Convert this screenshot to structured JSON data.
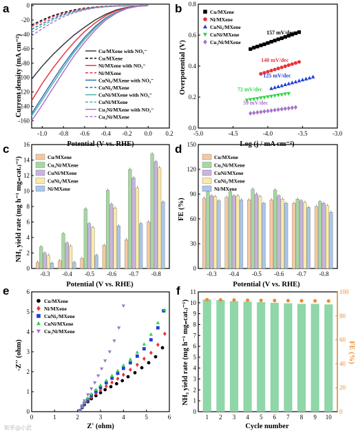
{
  "watermark": "知乎@小武",
  "chart_data": [
    {
      "id": "a",
      "panel_label": "a",
      "type": "line",
      "xlabel": "Potential (V vs. RHE)",
      "ylabel": "Current density (mA cm⁻²)",
      "xlim": [
        -1.1,
        0.2
      ],
      "ylim": [
        -170,
        2
      ],
      "xticks": [
        "-1.0",
        "-0.8",
        "-0.6",
        "-0.4",
        "-0.2",
        "0.0",
        "0.2"
      ],
      "yticks": [
        "-160",
        "-140",
        "-120",
        "-100",
        "-80",
        "-60",
        "-40",
        "-20",
        "0"
      ],
      "legend_position": "bottom-right",
      "series": [
        {
          "name": "Cu/MXene with NO₃⁻",
          "color": "#3a3a3a",
          "dash": false,
          "x": [
            -1.1,
            -1.0,
            -0.9,
            -0.8,
            -0.7,
            -0.6,
            -0.5,
            -0.4,
            -0.3,
            -0.2,
            -0.1,
            0.0
          ],
          "y": [
            -102,
            -84,
            -68,
            -54,
            -41,
            -30,
            -20,
            -12,
            -6,
            -2.5,
            -0.8,
            0
          ]
        },
        {
          "name": "Cu/MXene",
          "color": "#000000",
          "dash": true,
          "x": [
            -1.1,
            -1.0,
            -0.9,
            -0.8,
            -0.7,
            -0.6,
            -0.5,
            -0.4,
            -0.3,
            -0.2,
            -0.1,
            0.0
          ],
          "y": [
            -27,
            -20,
            -14,
            -9.5,
            -6,
            -3.5,
            -2,
            -1,
            -0.5,
            -0.2,
            -0.1,
            0
          ]
        },
        {
          "name": "Ni/MXene with NO₃⁻",
          "color": "#e8333b",
          "dash": false,
          "x": [
            -1.1,
            -1.0,
            -0.9,
            -0.8,
            -0.7,
            -0.6,
            -0.5,
            -0.4,
            -0.3,
            -0.2,
            -0.1,
            0.0
          ],
          "y": [
            -132,
            -108,
            -87,
            -68,
            -51,
            -36,
            -24,
            -14,
            -7,
            -3,
            -1,
            0
          ]
        },
        {
          "name": "Ni/MXene",
          "color": "#e8333b",
          "dash": true,
          "x": [
            -1.1,
            -1.0,
            -0.9,
            -0.8,
            -0.7,
            -0.6,
            -0.5,
            -0.4,
            -0.3,
            -0.2,
            -0.1,
            0.0
          ],
          "y": [
            -29,
            -22,
            -15.5,
            -10.5,
            -7,
            -4,
            -2.2,
            -1.1,
            -0.5,
            -0.2,
            -0.1,
            0
          ]
        },
        {
          "name": "CuNi₃/MXene with NO₃⁻",
          "color": "#2f6db5",
          "dash": false,
          "x": [
            -1.1,
            -1.0,
            -0.9,
            -0.8,
            -0.7,
            -0.6,
            -0.5,
            -0.4,
            -0.3,
            -0.2,
            -0.1,
            0.0
          ],
          "y": [
            -150,
            -127,
            -104,
            -82,
            -62,
            -44,
            -29,
            -17,
            -9,
            -3.5,
            -1,
            0
          ]
        },
        {
          "name": "CuNi₃/MXene",
          "color": "#2f6db5",
          "dash": true,
          "x": [
            -1.1,
            -1.0,
            -0.9,
            -0.8,
            -0.7,
            -0.6,
            -0.5,
            -0.4,
            -0.3,
            -0.2,
            -0.1,
            0.0
          ],
          "y": [
            -33,
            -25,
            -18,
            -12,
            -8,
            -4.8,
            -2.6,
            -1.3,
            -0.6,
            -0.2,
            -0.1,
            0
          ]
        },
        {
          "name": "CuNi/MXene with NO₃⁻",
          "color": "#4bb3a6",
          "dash": false,
          "x": [
            -1.1,
            -1.0,
            -0.9,
            -0.8,
            -0.7,
            -0.6,
            -0.5,
            -0.4,
            -0.3,
            -0.2,
            -0.1,
            0.0
          ],
          "y": [
            -153,
            -131,
            -108,
            -86,
            -65,
            -47,
            -31,
            -18,
            -9.5,
            -3.8,
            -1,
            0
          ]
        },
        {
          "name": "CuNi/MXene",
          "color": "#4bb3a6",
          "dash": true,
          "x": [
            -1.1,
            -1.0,
            -0.9,
            -0.8,
            -0.7,
            -0.6,
            -0.5,
            -0.4,
            -0.3,
            -0.2,
            -0.1,
            0.0
          ],
          "y": [
            -37,
            -28,
            -20,
            -13.5,
            -9,
            -5.5,
            -3,
            -1.5,
            -0.7,
            -0.3,
            -0.1,
            0
          ]
        },
        {
          "name": "Cu₃Ni/MXene with NO₃⁻",
          "color": "#b070cc",
          "dash": false,
          "x": [
            -1.1,
            -1.0,
            -0.9,
            -0.8,
            -0.7,
            -0.6,
            -0.5,
            -0.4,
            -0.3,
            -0.2,
            -0.1,
            0.0
          ],
          "y": [
            -160,
            -138,
            -115,
            -92,
            -70,
            -51,
            -34,
            -20,
            -10.5,
            -4,
            -1.2,
            0
          ]
        },
        {
          "name": "Cu₃Ni/MXene",
          "color": "#b070cc",
          "dash": true,
          "x": [
            -1.1,
            -1.0,
            -0.9,
            -0.8,
            -0.7,
            -0.6,
            -0.5,
            -0.4,
            -0.3,
            -0.2,
            -0.1,
            0.0
          ],
          "y": [
            -42,
            -32,
            -23,
            -15.5,
            -10,
            -6,
            -3.3,
            -1.7,
            -0.8,
            -0.3,
            -0.1,
            0
          ]
        }
      ]
    },
    {
      "id": "b",
      "panel_label": "b",
      "type": "scatter",
      "xlabel": "Log (j / mA cm⁻²)",
      "ylabel": "Overpotential (V)",
      "xlim": [
        -5.0,
        -3.0
      ],
      "ylim": [
        0.0,
        0.8
      ],
      "xticks": [
        "-5.0",
        "-4.5",
        "-4.0",
        "-3.5",
        "-3.0"
      ],
      "yticks": [
        "0.0",
        "0.2",
        "0.4",
        "0.6",
        "0.8"
      ],
      "legend_position": "top-left",
      "series": [
        {
          "name": "Cu/MXene",
          "color": "#000000",
          "marker": "square",
          "slope_label": "157 mV/dec",
          "x": [
            -4.25,
            -4.2,
            -4.15,
            -4.1,
            -4.05,
            -4.0,
            -3.95,
            -3.9,
            -3.85,
            -3.8,
            -3.75,
            -3.7,
            -3.65,
            -3.6,
            -3.55
          ],
          "y": [
            0.51,
            0.519,
            0.526,
            0.534,
            0.541,
            0.549,
            0.557,
            0.565,
            0.573,
            0.58,
            0.588,
            0.596,
            0.604,
            0.612,
            0.619
          ]
        },
        {
          "name": "Ni/MXene",
          "color": "#e8333b",
          "marker": "circle",
          "slope_label": "140 mV/dec",
          "x": [
            -4.1,
            -4.05,
            -4.0,
            -3.95,
            -3.9,
            -3.85,
            -3.8,
            -3.75,
            -3.7,
            -3.65,
            -3.6,
            -3.55
          ],
          "y": [
            0.35,
            0.357,
            0.364,
            0.371,
            0.378,
            0.385,
            0.392,
            0.399,
            0.406,
            0.413,
            0.42,
            0.427
          ]
        },
        {
          "name": "CuNi₃/MXene",
          "color": "#1f3fd6",
          "marker": "triangle",
          "slope_label": "125 mV/dec",
          "x": [
            -3.95,
            -3.9,
            -3.85,
            -3.8,
            -3.75,
            -3.7,
            -3.65,
            -3.6,
            -3.55,
            -3.5,
            -3.45,
            -3.4,
            -3.35
          ],
          "y": [
            0.255,
            0.261,
            0.267,
            0.273,
            0.28,
            0.286,
            0.292,
            0.298,
            0.305,
            0.311,
            0.317,
            0.323,
            0.33
          ]
        },
        {
          "name": "CuNi/MXene",
          "color": "#33d147",
          "marker": "triangle-down",
          "slope_label": "72 mV/dec",
          "x": [
            -4.3,
            -4.25,
            -4.2,
            -4.15,
            -4.1,
            -4.05,
            -4.0,
            -3.95,
            -3.9,
            -3.85,
            -3.8,
            -3.75,
            -3.7
          ],
          "y": [
            0.18,
            0.184,
            0.187,
            0.191,
            0.195,
            0.198,
            0.202,
            0.205,
            0.209,
            0.213,
            0.216,
            0.22,
            0.223
          ]
        },
        {
          "name": "Cu₃Ni/MXene",
          "color": "#a474c8",
          "marker": "diamond",
          "slope_label": "59 mV/dec",
          "x": [
            -4.25,
            -4.2,
            -4.15,
            -4.1,
            -4.05,
            -4.0,
            -3.95,
            -3.9,
            -3.85,
            -3.8,
            -3.75,
            -3.7,
            -3.65,
            -3.6
          ],
          "y": [
            0.095,
            0.098,
            0.101,
            0.104,
            0.107,
            0.11,
            0.113,
            0.116,
            0.119,
            0.122,
            0.125,
            0.128,
            0.131,
            0.134
          ]
        }
      ]
    },
    {
      "id": "c",
      "panel_label": "c",
      "type": "bar",
      "xlabel": "Potential (V vs. RHE)",
      "ylabel": "NH₃ yield rate (mg h⁻¹ mg₌cat.₎⁻¹)",
      "ylim": [
        0,
        16
      ],
      "yticks": [
        "0",
        "2",
        "4",
        "6",
        "8",
        "10",
        "12",
        "14",
        "16"
      ],
      "categories": [
        "-0.3",
        "-0.4",
        "-0.5",
        "-0.6",
        "-0.7",
        "-0.8"
      ],
      "legend_position": "top-left",
      "series": [
        {
          "name": "Cu/MXene",
          "color": "#f6c8a2",
          "values": [
            0.8,
            1.0,
            1.3,
            3.0,
            3.7,
            6.0
          ]
        },
        {
          "name": "Cu₃Ni/MXene",
          "color": "#a6d8a0",
          "values": [
            2.8,
            4.5,
            7.7,
            10.1,
            12.8,
            14.8
          ]
        },
        {
          "name": "CuNi/MXene",
          "color": "#c7b5dd",
          "values": [
            2.0,
            3.3,
            5.8,
            8.3,
            11.7,
            13.8
          ]
        },
        {
          "name": "CuNi₃/MXene",
          "color": "#fbeaa8",
          "values": [
            1.7,
            2.9,
            5.3,
            7.8,
            10.4,
            13.0
          ]
        },
        {
          "name": "Ni/MXene",
          "color": "#a9c7ea",
          "values": [
            0.7,
            0.8,
            1.7,
            5.5,
            5.8,
            8.6
          ]
        }
      ]
    },
    {
      "id": "d",
      "panel_label": "d",
      "type": "bar",
      "xlabel": "Potential (V vs. RHE)",
      "ylabel": "FE (%)",
      "ylim": [
        0,
        150
      ],
      "yticks": [
        "0",
        "30",
        "60",
        "90",
        "120",
        "150"
      ],
      "categories": [
        "-0.3",
        "-0.4",
        "-0.5",
        "-0.6",
        "-0.7",
        "-0.8"
      ],
      "legend_position": "top-left",
      "series": [
        {
          "name": "Cu/MXene",
          "color": "#f6c8a2",
          "values": [
            85,
            86,
            83,
            83,
            79,
            75
          ]
        },
        {
          "name": "Cu₃Ni/MXene",
          "color": "#a6d8a0",
          "values": [
            93,
            93,
            96,
            95,
            84,
            81
          ]
        },
        {
          "name": "CuNi/MXene",
          "color": "#c7b5dd",
          "values": [
            88,
            88,
            90,
            88,
            82,
            79
          ]
        },
        {
          "name": "CuNi₃/MXene",
          "color": "#fbeaa8",
          "values": [
            87,
            88,
            87,
            84,
            80,
            76
          ]
        },
        {
          "name": "Ni/MXene",
          "color": "#a9c7ea",
          "values": [
            82,
            83,
            79,
            79,
            74,
            68
          ]
        }
      ]
    },
    {
      "id": "e",
      "panel_label": "e",
      "type": "scatter",
      "xlabel": "Z' (ohm)",
      "ylabel": "-Z'' (ohm)",
      "xlim": [
        0,
        6
      ],
      "ylim": [
        0,
        6
      ],
      "xticks": [
        "0",
        "1",
        "2",
        "3",
        "4",
        "5",
        "6"
      ],
      "yticks": [
        "0",
        "1",
        "2",
        "3",
        "4",
        "5",
        "6"
      ],
      "legend_position": "top-left",
      "series": [
        {
          "name": "Cu/MXene",
          "color": "#000000",
          "marker": "circle",
          "x": [
            2.1,
            2.2,
            2.3,
            2.45,
            2.6,
            2.8,
            3.0,
            3.2,
            3.45,
            3.7,
            3.95,
            4.2,
            4.5,
            4.8,
            5.1,
            5.4,
            5.7
          ],
          "y": [
            0.05,
            0.2,
            0.35,
            0.5,
            0.65,
            0.8,
            0.95,
            1.1,
            1.25,
            1.4,
            1.55,
            1.75,
            1.95,
            2.2,
            2.45,
            2.75,
            3.2
          ]
        },
        {
          "name": "Ni/MXene",
          "color": "#e8333b",
          "marker": "diamond",
          "x": [
            2.1,
            2.2,
            2.3,
            2.45,
            2.6,
            2.8,
            3.0,
            3.25,
            3.5,
            3.75,
            4.0,
            4.3,
            4.6,
            4.9,
            5.2,
            5.5,
            5.8
          ],
          "y": [
            0.05,
            0.22,
            0.38,
            0.55,
            0.72,
            0.9,
            1.08,
            1.27,
            1.46,
            1.65,
            1.85,
            2.1,
            2.35,
            2.65,
            2.95,
            3.35,
            3.9
          ]
        },
        {
          "name": "CuNi₃/MXene",
          "color": "#1f3fd6",
          "marker": "square",
          "x": [
            2.1,
            2.2,
            2.3,
            2.45,
            2.6,
            2.8,
            3.0,
            3.25,
            3.5,
            3.75,
            4.0,
            4.3,
            4.6,
            4.9,
            5.2,
            5.5,
            5.75
          ],
          "y": [
            0.05,
            0.24,
            0.42,
            0.62,
            0.82,
            1.02,
            1.22,
            1.45,
            1.68,
            1.92,
            2.17,
            2.45,
            2.78,
            3.15,
            3.6,
            4.2,
            5.05
          ]
        },
        {
          "name": "CuNi/MXene",
          "color": "#33d147",
          "marker": "triangle",
          "x": [
            2.1,
            2.2,
            2.3,
            2.45,
            2.6,
            2.8,
            3.0,
            3.25,
            3.5,
            3.75,
            4.0,
            4.3,
            4.6,
            4.9,
            5.2,
            5.5,
            5.8
          ],
          "y": [
            0.05,
            0.25,
            0.45,
            0.67,
            0.88,
            1.1,
            1.32,
            1.56,
            1.8,
            2.05,
            2.32,
            2.62,
            2.97,
            3.38,
            3.87,
            4.45,
            5.1
          ]
        },
        {
          "name": "Cu₃Ni/MXene",
          "color": "#a474c8",
          "marker": "triangle-down",
          "x": [
            2.1,
            2.2,
            2.3,
            2.45,
            2.6,
            2.75,
            2.9,
            3.05,
            3.2,
            3.4,
            3.6,
            3.8,
            4.0
          ],
          "y": [
            0.05,
            0.3,
            0.55,
            0.85,
            1.15,
            1.45,
            1.8,
            2.15,
            2.55,
            3.0,
            3.55,
            4.2,
            5.3
          ]
        }
      ]
    },
    {
      "id": "f",
      "panel_label": "f",
      "type": "bar",
      "xlabel": "Cycle number",
      "ylabel": "NH₃ yield rate (mg h⁻¹ mg₌cat.₎⁻¹)",
      "ylabel_right": "FE (%)",
      "ylim": [
        0,
        11
      ],
      "ylim_right": [
        0,
        100
      ],
      "yticks": [
        "0",
        "1",
        "2",
        "3",
        "4",
        "5",
        "6",
        "7",
        "8",
        "9",
        "10",
        "11"
      ],
      "yticks_right": [
        "0",
        "20",
        "40",
        "60",
        "80",
        "100"
      ],
      "categories": [
        "1",
        "2",
        "3",
        "4",
        "5",
        "6",
        "7",
        "8",
        "9",
        "10"
      ],
      "bar_color": "#8fd6a8",
      "fe_color": "#f28a2e",
      "values": [
        10.3,
        10.25,
        10.15,
        10.1,
        10.05,
        10.0,
        9.95,
        9.9,
        9.9,
        9.85
      ],
      "fe_values": [
        93.5,
        93.3,
        93.2,
        93.0,
        92.9,
        92.8,
        92.7,
        92.6,
        92.5,
        92.4
      ]
    }
  ]
}
